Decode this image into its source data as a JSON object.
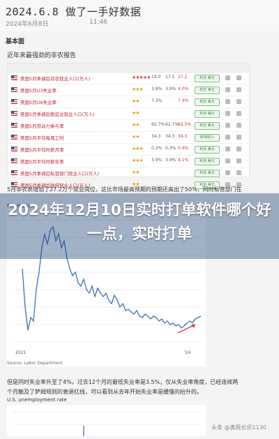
{
  "header": {
    "date_title": "2024.6.8  做了一手好数据",
    "sub_line": "2024年6月8日",
    "sub_time": "11:46"
  },
  "section_label": "基本面",
  "report_title": "近年来最强劲的非农报告",
  "table": {
    "rows": [
      {
        "name": "美国5月季调后非农就业人口(万人)",
        "stars": "★★★★★",
        "red": true,
        "v1": "19.0",
        "v2": "17.5",
        "v3": "27.2",
        "pill": "利多 美元"
      },
      {
        "name": "美国5月U3失业率",
        "stars": "★★★",
        "red": false,
        "v1": "3.9%",
        "v2": "3.9%",
        "v3": "4.0%",
        "pill": "利空 美元"
      },
      {
        "name": "美国5月U6失业率",
        "stars": "★★",
        "red": false,
        "v1": "7.3%",
        "v2": "",
        "v3": "7.4%",
        "pill": "利空 美元"
      },
      {
        "name": "美国5月季调后制造业就业人口(万人)",
        "stars": "★★",
        "red": false,
        "v1": "",
        "v2": "",
        "v3": "",
        "pill": "利多 美元"
      },
      {
        "name": "美国5月劳动力参与率",
        "stars": "★★",
        "red": false,
        "v1": "62.7%",
        "v2": "62.7%",
        "v3": "62.5%",
        "pill": "利空 美元"
      },
      {
        "name": "美国5月平均每周工时",
        "stars": "★★",
        "red": false,
        "v1": "34.3",
        "v2": "34.3",
        "v3": "34.3",
        "pill": "影响较小"
      },
      {
        "name": "美国5月平均时薪月率",
        "stars": "★★★",
        "red": false,
        "v1": "0.2%",
        "v2": "0.3%",
        "v3": "0.4%",
        "pill": "利多 美元"
      },
      {
        "name": "美国5月平均时薪年率",
        "stars": "★★★",
        "red": false,
        "v1": "3.9%",
        "v2": "3.9%",
        "v3": "4.1%",
        "pill": "利多 美元"
      },
      {
        "name": "美国5月季调后私营部门就业人口(万人)",
        "stars": "★★",
        "red": false,
        "v1": "",
        "v2": "",
        "v3": "",
        "pill": "利多 美元"
      },
      {
        "name": "美国5月季调后政府就业人口(万人)",
        "stars": "★★",
        "red": false,
        "v1": "",
        "v2": "",
        "v3": "",
        "pill": "利多 美元"
      }
    ]
  },
  "caption1": "5月非农表增加了27.2万个就业岗位，这比市场最高预期的预期还高出了50%，同时私营部门在",
  "chart": {
    "label": "Private-se",
    "source": "Source: Labor Department",
    "x_ticks": [
      "2021",
      "'24"
    ],
    "line_color": "#3b6fb6",
    "arrow_color": "#d23a3a"
  },
  "headline": "2024年12月10日实时打单软件哪个好一点，实时打单",
  "caption2_line1": "但是同时失业率升至了4%，过去12个月的最低失业率是3.5%，仅从失业率角度，已经连续两",
  "caption2_line2": "个月触及了萨姆规则的衰退红线，可以看到从去年开始失业率是缓慢的抬升的。",
  "chart2_label": "U.S. unemployment rate",
  "watermark": "头条 @奥辰长乐1130"
}
